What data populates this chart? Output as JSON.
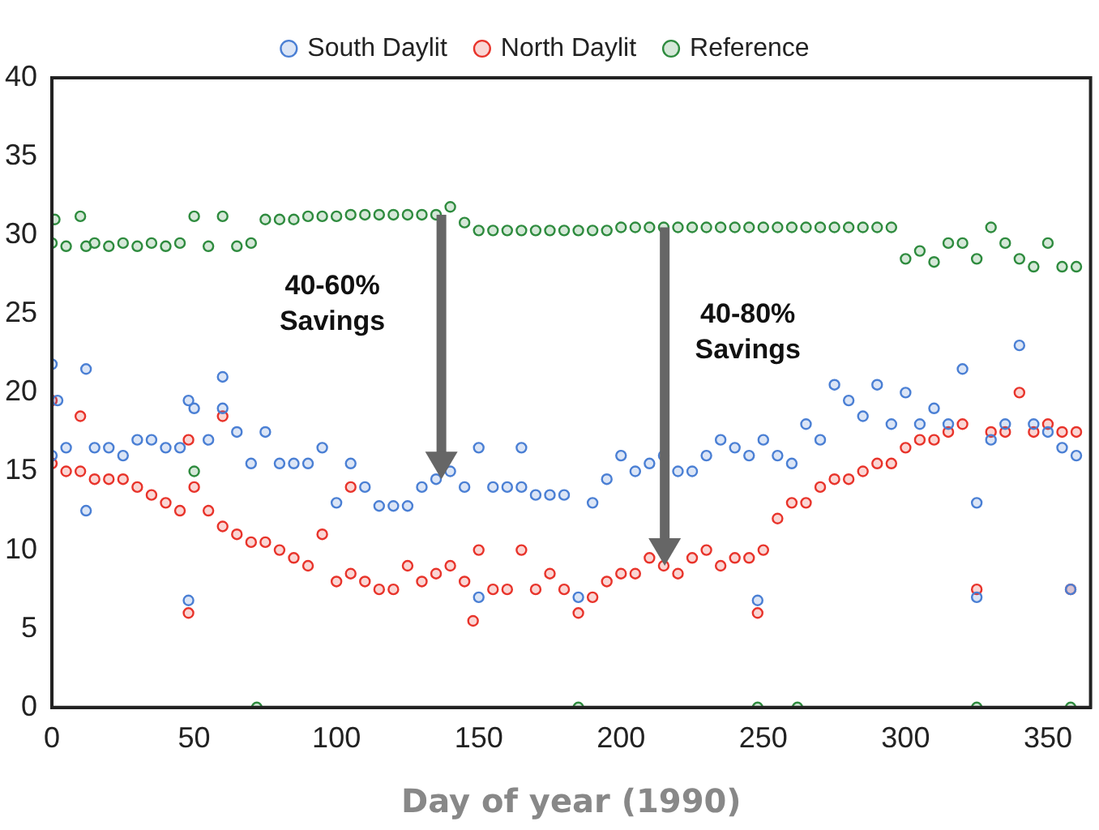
{
  "chart_data": {
    "type": "scatter",
    "xlabel": "Day of year (1990)",
    "xlim": [
      0,
      365
    ],
    "xticks": [
      0,
      50,
      100,
      150,
      200,
      250,
      300,
      350
    ],
    "ylim": [
      0,
      40
    ],
    "yticks": [
      0,
      5,
      10,
      15,
      20,
      25,
      30,
      35,
      40
    ],
    "grid": false,
    "legend": "top",
    "marker": "circle",
    "annotations": [
      "40-60%\nSavings",
      "40-80%\nSavings"
    ],
    "series": [
      {
        "name": "South Daylit",
        "color": "#4a7fd4",
        "x": [
          0,
          0,
          2,
          5,
          12,
          12,
          15,
          20,
          25,
          30,
          35,
          40,
          45,
          48,
          48,
          50,
          55,
          60,
          60,
          65,
          70,
          75,
          80,
          85,
          90,
          95,
          100,
          105,
          110,
          115,
          120,
          125,
          130,
          135,
          140,
          145,
          150,
          150,
          155,
          160,
          165,
          165,
          170,
          175,
          180,
          185,
          190,
          195,
          200,
          205,
          210,
          215,
          220,
          225,
          230,
          235,
          240,
          245,
          248,
          250,
          255,
          260,
          265,
          270,
          275,
          280,
          285,
          290,
          295,
          300,
          305,
          310,
          315,
          320,
          325,
          325,
          330,
          335,
          340,
          345,
          350,
          355,
          358,
          360
        ],
        "values": [
          21.8,
          16,
          19.5,
          16.5,
          21.5,
          12.5,
          16.5,
          16.5,
          16,
          17,
          17,
          16.5,
          16.5,
          19.5,
          6.8,
          19,
          17,
          21,
          19,
          17.5,
          15.5,
          17.5,
          15.5,
          15.5,
          15.5,
          16.5,
          13,
          15.5,
          14,
          12.8,
          12.8,
          12.8,
          14,
          14.5,
          15,
          14,
          16.5,
          7,
          14,
          14,
          16.5,
          14,
          13.5,
          13.5,
          13.5,
          7,
          13,
          14.5,
          16,
          15,
          15.5,
          16,
          15,
          15,
          16,
          17,
          16.5,
          16,
          6.8,
          17,
          16,
          15.5,
          18,
          17,
          20.5,
          19.5,
          18.5,
          20.5,
          18,
          20,
          18,
          19,
          18,
          21.5,
          13,
          7,
          17,
          18,
          23,
          18,
          17.5,
          16.5,
          7.5,
          16
        ]
      },
      {
        "name": "North Daylit",
        "color": "#e8332a",
        "x": [
          0,
          0,
          5,
          10,
          10,
          15,
          20,
          25,
          30,
          35,
          40,
          45,
          48,
          48,
          50,
          55,
          60,
          60,
          65,
          70,
          75,
          80,
          85,
          90,
          95,
          100,
          105,
          105,
          110,
          115,
          120,
          125,
          130,
          135,
          140,
          145,
          148,
          150,
          155,
          160,
          165,
          170,
          175,
          180,
          185,
          190,
          195,
          200,
          205,
          210,
          215,
          220,
          225,
          230,
          235,
          240,
          245,
          248,
          250,
          255,
          260,
          265,
          270,
          275,
          280,
          285,
          290,
          295,
          300,
          305,
          310,
          315,
          320,
          325,
          330,
          335,
          340,
          345,
          350,
          355,
          358,
          360
        ],
        "values": [
          19.5,
          15.5,
          15,
          15,
          18.5,
          14.5,
          14.5,
          14.5,
          14,
          13.5,
          13,
          12.5,
          6,
          17,
          14,
          12.5,
          18.5,
          11.5,
          11,
          10.5,
          10.5,
          10,
          9.5,
          9,
          11,
          8,
          8.5,
          14,
          8,
          7.5,
          7.5,
          9,
          8,
          8.5,
          9,
          8,
          5.5,
          10,
          7.5,
          7.5,
          10,
          7.5,
          8.5,
          7.5,
          6,
          7,
          8,
          8.5,
          8.5,
          9.5,
          9,
          8.5,
          9.5,
          10,
          9,
          9.5,
          9.5,
          6,
          10,
          12,
          13,
          13,
          14,
          14.5,
          14.5,
          15,
          15.5,
          15.5,
          16.5,
          17,
          17,
          17.5,
          18,
          7.5,
          17.5,
          17.5,
          20,
          17.5,
          18,
          17.5,
          7.5,
          17.5
        ]
      },
      {
        "name": "Reference",
        "color": "#2e8b3e",
        "x": [
          0,
          1,
          5,
          10,
          12,
          15,
          20,
          25,
          30,
          35,
          40,
          45,
          50,
          50,
          55,
          60,
          65,
          70,
          72,
          75,
          80,
          85,
          90,
          95,
          100,
          105,
          110,
          115,
          120,
          125,
          130,
          135,
          140,
          145,
          150,
          155,
          160,
          165,
          170,
          175,
          180,
          185,
          185,
          190,
          195,
          200,
          205,
          210,
          215,
          220,
          225,
          230,
          235,
          240,
          245,
          248,
          250,
          255,
          260,
          262,
          265,
          270,
          275,
          280,
          285,
          290,
          295,
          300,
          305,
          310,
          315,
          320,
          325,
          325,
          330,
          335,
          340,
          345,
          350,
          355,
          358,
          360
        ],
        "values": [
          29.5,
          31,
          29.3,
          31.2,
          29.3,
          29.5,
          29.3,
          29.5,
          29.3,
          29.5,
          29.3,
          29.5,
          31.2,
          15,
          29.3,
          31.2,
          29.3,
          29.5,
          0,
          31,
          31,
          31,
          31.2,
          31.2,
          31.2,
          31.3,
          31.3,
          31.3,
          31.3,
          31.3,
          31.3,
          31.3,
          31.8,
          30.8,
          30.3,
          30.3,
          30.3,
          30.3,
          30.3,
          30.3,
          30.3,
          30.3,
          0,
          30.3,
          30.3,
          30.5,
          30.5,
          30.5,
          30.5,
          30.5,
          30.5,
          30.5,
          30.5,
          30.5,
          30.5,
          0,
          30.5,
          30.5,
          30.5,
          0,
          30.5,
          30.5,
          30.5,
          30.5,
          30.5,
          30.5,
          30.5,
          28.5,
          29,
          28.3,
          29.5,
          29.5,
          28.5,
          0,
          30.5,
          29.5,
          28.5,
          28,
          29.5,
          28,
          0,
          28
        ]
      }
    ]
  }
}
